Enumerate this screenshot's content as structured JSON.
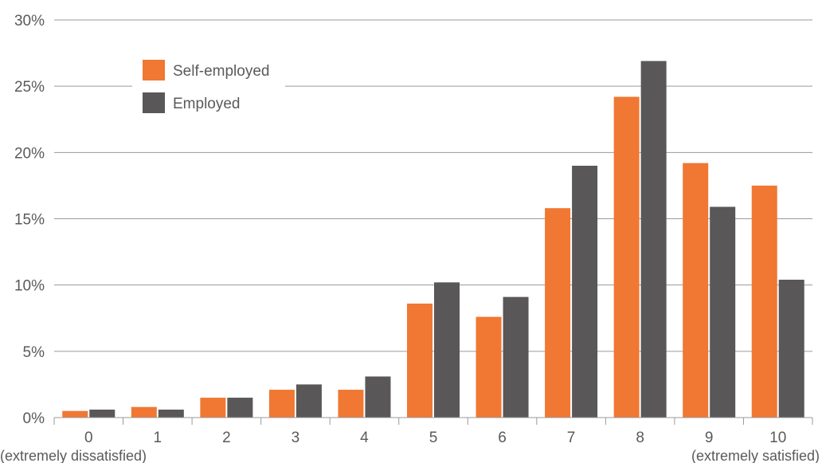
{
  "chart_data": {
    "type": "bar",
    "categories": [
      "0",
      "1",
      "2",
      "3",
      "4",
      "5",
      "6",
      "7",
      "8",
      "9",
      "10"
    ],
    "category_sublabels": {
      "first": "(extremely dissatisfied)",
      "last": "(extremely satisfied)"
    },
    "series": [
      {
        "name": "Self-employed",
        "color": "#f07833",
        "values": [
          0.5,
          0.8,
          1.5,
          2.1,
          2.1,
          8.6,
          7.6,
          15.8,
          24.2,
          19.2,
          17.5
        ]
      },
      {
        "name": "Employed",
        "color": "#595757",
        "values": [
          0.6,
          0.6,
          1.5,
          2.5,
          3.1,
          10.2,
          9.1,
          19.0,
          26.9,
          15.9,
          10.4
        ]
      }
    ],
    "ylim": [
      0,
      30
    ],
    "yticks": [
      "0%",
      "5%",
      "10%",
      "15%",
      "20%",
      "25%",
      "30%"
    ],
    "ytick_values": [
      0,
      5,
      10,
      15,
      20,
      25,
      30
    ],
    "grid": true,
    "legend": "top-left"
  }
}
